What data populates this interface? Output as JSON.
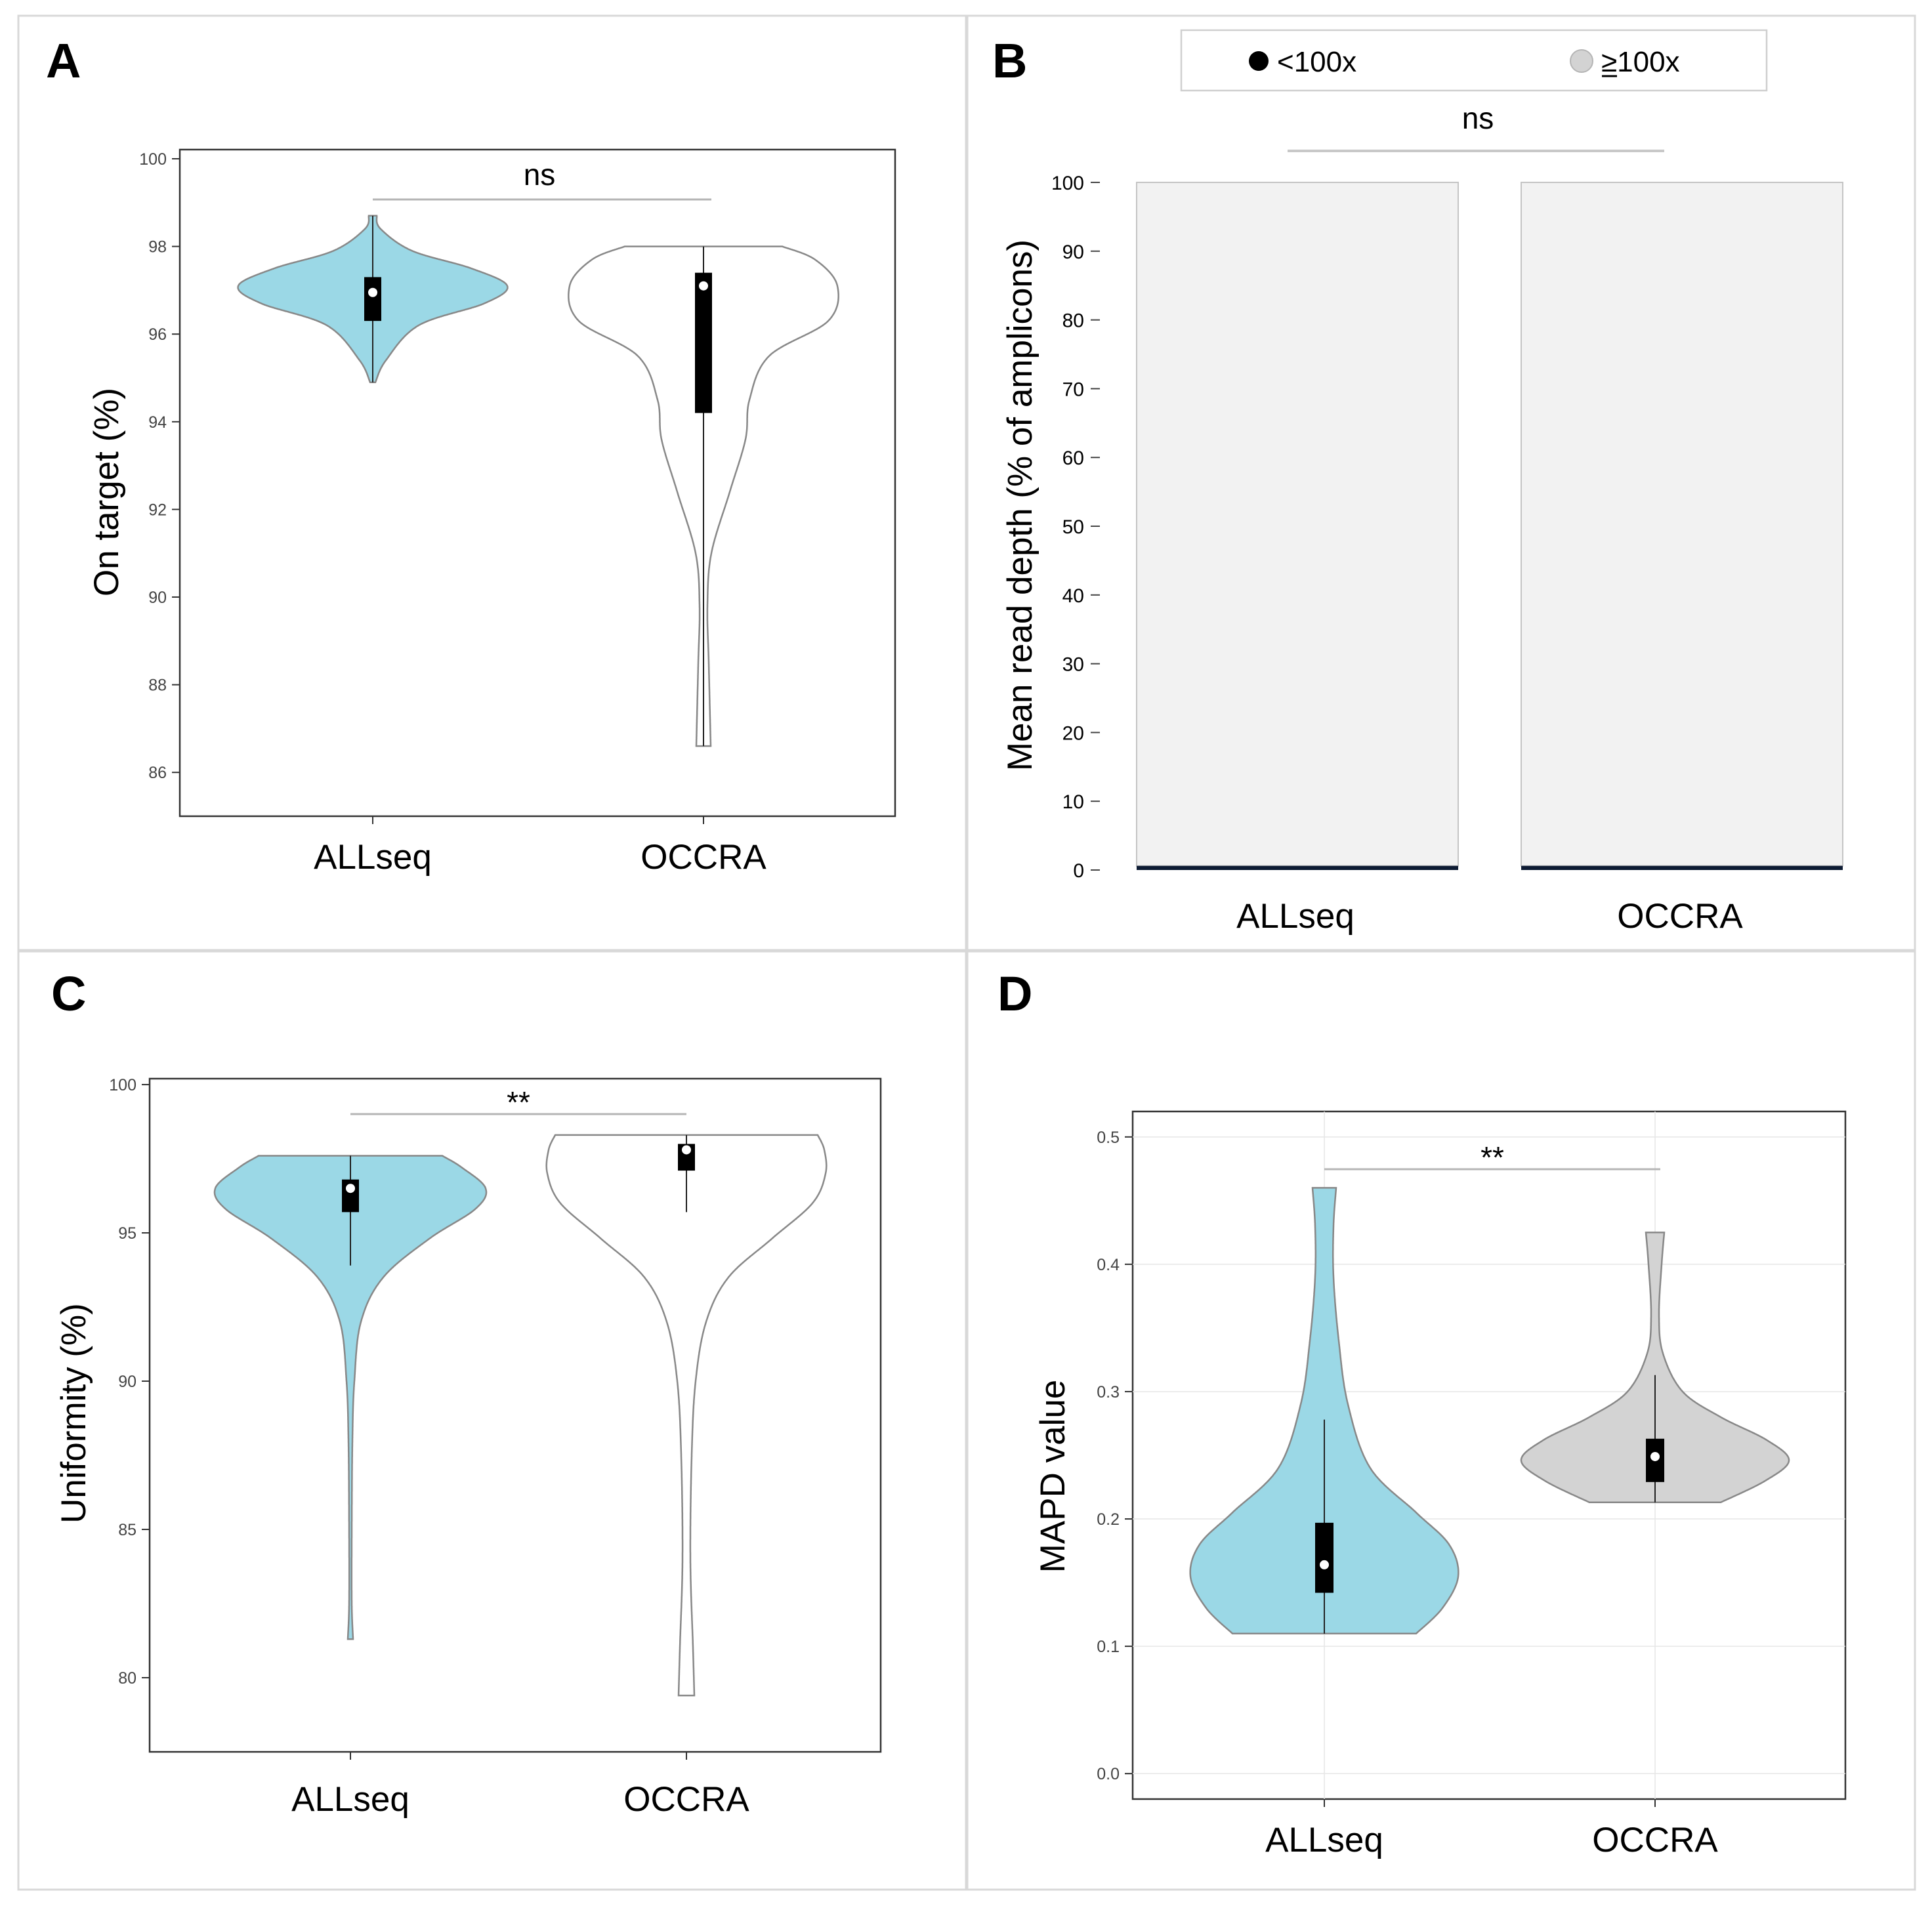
{
  "colors": {
    "allseq_fill": "#9bd8e6",
    "occra_fill_ac": "#ffffff",
    "occra_fill_d": "#d3d3d3",
    "violin_stroke": "#888888",
    "box": "#000000",
    "median": "#ffffff",
    "bar_high": "#f2f2f2",
    "bar_low": "#0d1b33",
    "sig_line": "#b5b5b5",
    "frame": "#d8d8d8"
  },
  "chart_data": [
    {
      "panel": "A",
      "type": "violin",
      "ylabel": "On target (%)",
      "ylim": [
        85,
        100
      ],
      "yticks": [
        "86",
        "88",
        "90",
        "92",
        "94",
        "96",
        "98",
        "100"
      ],
      "categories": [
        "ALLseq",
        "OCCRA"
      ],
      "series": [
        {
          "name": "ALLseq",
          "min": 94.9,
          "max": 98.7,
          "q1": 96.3,
          "q3": 97.3,
          "median": 96.95,
          "whisker_low": 94.9,
          "whisker_high": 98.7
        },
        {
          "name": "OCCRA",
          "min": 86.6,
          "max": 98.0,
          "q1": 94.2,
          "q3": 97.4,
          "median": 97.1,
          "whisker_low": 86.6,
          "whisker_high": 98.0
        }
      ],
      "significance": "ns"
    },
    {
      "panel": "B",
      "type": "bar",
      "stacked": true,
      "ylabel": "Mean read depth (% of amplicons)",
      "ylim": [
        0,
        100
      ],
      "yticks": [
        "0",
        "10",
        "20",
        "30",
        "40",
        "50",
        "60",
        "70",
        "80",
        "90",
        "100"
      ],
      "categories": [
        "ALLseq",
        "OCCRA"
      ],
      "series": [
        {
          "name": "<100x",
          "values": [
            0.6,
            0.6
          ]
        },
        {
          "name": "100x",
          "values": [
            99.4,
            99.4
          ]
        }
      ],
      "legend": {
        "position": "top",
        "items": [
          "<100x",
          "≥100x"
        ]
      },
      "significance": "ns"
    },
    {
      "panel": "C",
      "type": "violin",
      "ylabel": "Uniformity (%)",
      "ylim": [
        77.5,
        100.2
      ],
      "yticks": [
        "80",
        "85",
        "90",
        "95",
        "100"
      ],
      "categories": [
        "ALLseq",
        "OCCRA"
      ],
      "series": [
        {
          "name": "ALLseq",
          "min": 81.3,
          "max": 97.6,
          "q1": 95.7,
          "q3": 96.8,
          "median": 96.5,
          "whisker_low": 93.9,
          "whisker_high": 97.6
        },
        {
          "name": "OCCRA",
          "min": 79.4,
          "max": 98.3,
          "q1": 97.1,
          "q3": 98.0,
          "median": 97.8,
          "whisker_low": 95.7,
          "whisker_high": 98.3
        }
      ],
      "significance": "**"
    },
    {
      "panel": "D",
      "type": "violin",
      "ylabel": "MAPD value",
      "ylim": [
        -0.02,
        0.52
      ],
      "yticks": [
        "0.0",
        "0.1",
        "0.2",
        "0.3",
        "0.4",
        "0.5"
      ],
      "grid": true,
      "categories": [
        "ALLseq",
        "OCCRA"
      ],
      "series": [
        {
          "name": "ALLseq",
          "min": 0.11,
          "max": 0.46,
          "q1": 0.142,
          "q3": 0.197,
          "median": 0.164,
          "whisker_low": 0.11,
          "whisker_high": 0.278
        },
        {
          "name": "OCCRA",
          "min": 0.213,
          "max": 0.425,
          "q1": 0.229,
          "q3": 0.263,
          "median": 0.249,
          "whisker_low": 0.213,
          "whisker_high": 0.313
        }
      ],
      "significance": "**"
    }
  ]
}
